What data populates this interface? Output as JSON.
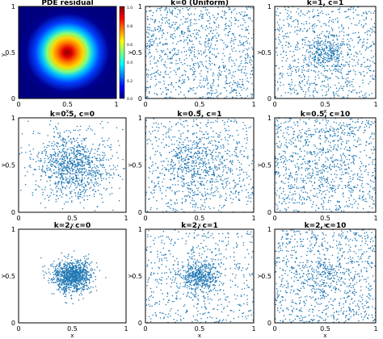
{
  "figure": {
    "panels": [
      {
        "title": "PDE residual",
        "kind": "heatmap",
        "xlabel": "x",
        "ylabel": "y",
        "xticks": [
          "0",
          "0.5",
          "1"
        ],
        "yticks": [
          "0",
          "0.5",
          "1"
        ]
      },
      {
        "title": "k=0 (Uniform)",
        "kind": "scatter",
        "xlabel": "x",
        "ylabel": "y",
        "xticks": [
          "0",
          "0.5",
          "1"
        ],
        "yticks": [
          "0",
          "0.5",
          "1"
        ]
      },
      {
        "title": "k=1, c=1",
        "kind": "scatter",
        "xlabel": "x",
        "ylabel": "y",
        "xticks": [
          "0",
          "0.5",
          "1"
        ],
        "yticks": [
          "0",
          "0.5",
          "1"
        ]
      },
      {
        "title": "k=0.5, c=0",
        "kind": "scatter",
        "xlabel": "x",
        "ylabel": "y",
        "xticks": [
          "0",
          "0.5",
          "1"
        ],
        "yticks": [
          "0",
          "0.5",
          "1"
        ]
      },
      {
        "title": "k=0.5, c=1",
        "kind": "scatter",
        "xlabel": "x",
        "ylabel": "y",
        "xticks": [
          "0",
          "0.5",
          "1"
        ],
        "yticks": [
          "0",
          "0.5",
          "1"
        ]
      },
      {
        "title": "k=0.5, c=10",
        "kind": "scatter",
        "xlabel": "x",
        "ylabel": "y",
        "xticks": [
          "0",
          "0.5",
          "1"
        ],
        "yticks": [
          "0",
          "0.5",
          "1"
        ]
      },
      {
        "title": "k=2, c=0",
        "kind": "scatter",
        "xlabel": "x",
        "ylabel": "y",
        "xticks": [
          "0",
          "0.5",
          "1"
        ],
        "yticks": [
          "0",
          "0.5",
          "1"
        ]
      },
      {
        "title": "k=2, c=1",
        "kind": "scatter",
        "xlabel": "x",
        "ylabel": "y",
        "xticks": [
          "0",
          "0.5",
          "1"
        ],
        "yticks": [
          "0",
          "0.5",
          "1"
        ]
      },
      {
        "title": "k=2, c=10",
        "kind": "scatter",
        "xlabel": "x",
        "ylabel": "y",
        "xticks": [
          "0",
          "0.5",
          "1"
        ],
        "yticks": [
          "0",
          "0.5",
          "1"
        ]
      }
    ],
    "colorbar": {
      "ticks": [
        "1.0",
        "0.8",
        "0.6",
        "0.4",
        "0.2",
        "0.0"
      ],
      "colormap": "jet"
    }
  },
  "chart_data": [
    {
      "type": "heatmap",
      "title": "PDE residual",
      "xlabel": "x",
      "ylabel": "y",
      "xlim": [
        0,
        1
      ],
      "ylim": [
        0,
        1
      ],
      "peak": {
        "x": 0.5,
        "y": 0.5,
        "value": 1.0
      },
      "spread": 0.1,
      "color_range": [
        0.0,
        1.0
      ],
      "colormap": "jet"
    },
    {
      "type": "scatter",
      "title": "k=0 (Uniform)",
      "xlabel": "x",
      "ylabel": "y",
      "xlim": [
        0,
        1
      ],
      "ylim": [
        0,
        1
      ],
      "n_points": 1000,
      "distribution": "uniform",
      "cluster_center": [
        0.5,
        0.5
      ],
      "cluster_fraction": 0.0,
      "cluster_spread": 0.0,
      "marker_color": "#1f77b4"
    },
    {
      "type": "scatter",
      "title": "k=1, c=1",
      "xlabel": "x",
      "ylabel": "y",
      "xlim": [
        0,
        1
      ],
      "ylim": [
        0,
        1
      ],
      "n_points": 1000,
      "distribution": "mixture",
      "cluster_center": [
        0.5,
        0.5
      ],
      "cluster_fraction": 0.3,
      "cluster_spread": 0.1,
      "marker_color": "#1f77b4"
    },
    {
      "type": "scatter",
      "title": "k=0.5, c=0",
      "xlabel": "x",
      "ylabel": "y",
      "xlim": [
        0,
        1
      ],
      "ylim": [
        0,
        1
      ],
      "n_points": 1000,
      "distribution": "gaussian",
      "cluster_center": [
        0.5,
        0.5
      ],
      "cluster_fraction": 1.0,
      "cluster_spread": 0.18,
      "marker_color": "#1f77b4"
    },
    {
      "type": "scatter",
      "title": "k=0.5, c=1",
      "xlabel": "x",
      "ylabel": "y",
      "xlim": [
        0,
        1
      ],
      "ylim": [
        0,
        1
      ],
      "n_points": 1000,
      "distribution": "mixture",
      "cluster_center": [
        0.5,
        0.5
      ],
      "cluster_fraction": 0.5,
      "cluster_spread": 0.18,
      "marker_color": "#1f77b4"
    },
    {
      "type": "scatter",
      "title": "k=0.5, c=10",
      "xlabel": "x",
      "ylabel": "y",
      "xlim": [
        0,
        1
      ],
      "ylim": [
        0,
        1
      ],
      "n_points": 1000,
      "distribution": "mixture",
      "cluster_center": [
        0.5,
        0.5
      ],
      "cluster_fraction": 0.1,
      "cluster_spread": 0.2,
      "marker_color": "#1f77b4"
    },
    {
      "type": "scatter",
      "title": "k=2, c=0",
      "xlabel": "x",
      "ylabel": "y",
      "xlim": [
        0,
        1
      ],
      "ylim": [
        0,
        1
      ],
      "n_points": 1000,
      "distribution": "gaussian",
      "cluster_center": [
        0.5,
        0.5
      ],
      "cluster_fraction": 1.0,
      "cluster_spread": 0.09,
      "marker_color": "#1f77b4"
    },
    {
      "type": "scatter",
      "title": "k=2, c=1",
      "xlabel": "x",
      "ylabel": "y",
      "xlim": [
        0,
        1
      ],
      "ylim": [
        0,
        1
      ],
      "n_points": 1000,
      "distribution": "mixture",
      "cluster_center": [
        0.5,
        0.5
      ],
      "cluster_fraction": 0.45,
      "cluster_spread": 0.09,
      "marker_color": "#1f77b4"
    },
    {
      "type": "scatter",
      "title": "k=2, c=10",
      "xlabel": "x",
      "ylabel": "y",
      "xlim": [
        0,
        1
      ],
      "ylim": [
        0,
        1
      ],
      "n_points": 1000,
      "distribution": "mixture",
      "cluster_center": [
        0.5,
        0.5
      ],
      "cluster_fraction": 0.1,
      "cluster_spread": 0.1,
      "marker_color": "#1f77b4"
    }
  ]
}
